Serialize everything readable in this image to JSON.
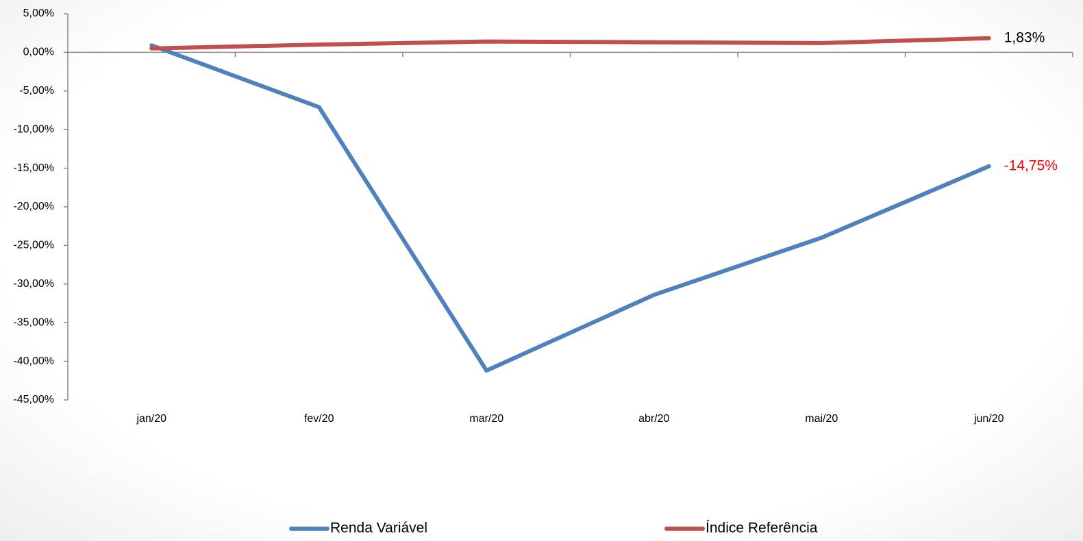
{
  "chart_data": {
    "type": "line",
    "categories": [
      "jan/20",
      "fev/20",
      "mar/20",
      "abr/20",
      "mai/20",
      "jun/20"
    ],
    "series": [
      {
        "name": "Renda Variável",
        "color": "#4f81bd",
        "values": [
          0.9,
          -7.1,
          -41.2,
          -31.4,
          -24.0,
          -14.75
        ],
        "value_labels": [
          null,
          null,
          null,
          null,
          null,
          "-14,75%"
        ],
        "label_color": "#ff0000"
      },
      {
        "name": "Índice Referência",
        "color": "#c0504d",
        "values": [
          0.5,
          1.0,
          1.4,
          1.3,
          1.2,
          1.83
        ],
        "value_labels": [
          null,
          null,
          null,
          null,
          null,
          "1,83%"
        ],
        "label_color": "#000000"
      }
    ],
    "ylim": [
      -45,
      5
    ],
    "yticks": [
      {
        "value": 5,
        "label": "5,00%"
      },
      {
        "value": 0,
        "label": "0,00%"
      },
      {
        "value": -5,
        "label": "-5,00%"
      },
      {
        "value": -10,
        "label": "-10,00%"
      },
      {
        "value": -15,
        "label": "-15,00%"
      },
      {
        "value": -20,
        "label": "-20,00%"
      },
      {
        "value": -25,
        "label": "-25,00%"
      },
      {
        "value": -30,
        "label": "-30,00%"
      },
      {
        "value": -35,
        "label": "-35,00%"
      },
      {
        "value": -40,
        "label": "-40,00%"
      },
      {
        "value": -45,
        "label": "-45,00%"
      }
    ],
    "grid": false,
    "legend": "bottom"
  }
}
